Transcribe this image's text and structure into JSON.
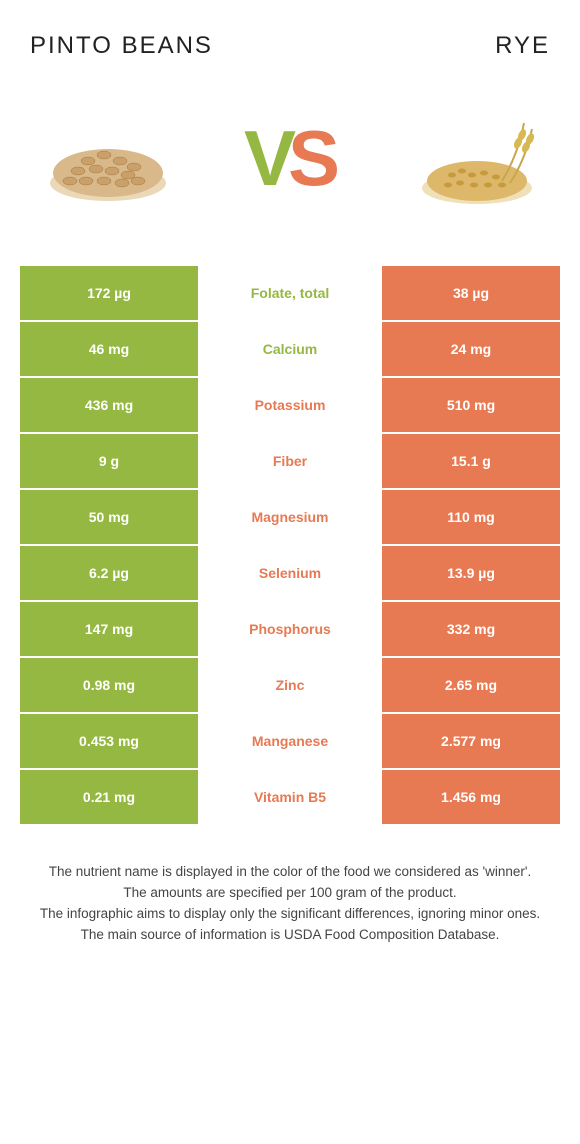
{
  "header": {
    "left_name": "PINTO BEANS",
    "right_name": "RYE"
  },
  "colors": {
    "left": "#95b842",
    "right": "#e77a53",
    "left_strong": "#95b842",
    "right_strong": "#e77a53",
    "white": "#ffffff",
    "text_dark": "#333333"
  },
  "vs": {
    "v_color": "#95b842",
    "s_color": "#e77a53"
  },
  "rows": [
    {
      "left": "172 µg",
      "label": "Folate, total",
      "right": "38 µg",
      "winner": "left"
    },
    {
      "left": "46 mg",
      "label": "Calcium",
      "right": "24 mg",
      "winner": "left"
    },
    {
      "left": "436 mg",
      "label": "Potassium",
      "right": "510 mg",
      "winner": "right"
    },
    {
      "left": "9 g",
      "label": "Fiber",
      "right": "15.1 g",
      "winner": "right"
    },
    {
      "left": "50 mg",
      "label": "Magnesium",
      "right": "110 mg",
      "winner": "right"
    },
    {
      "left": "6.2 µg",
      "label": "Selenium",
      "right": "13.9 µg",
      "winner": "right"
    },
    {
      "left": "147 mg",
      "label": "Phosphorus",
      "right": "332 mg",
      "winner": "right"
    },
    {
      "left": "0.98 mg",
      "label": "Zinc",
      "right": "2.65 mg",
      "winner": "right"
    },
    {
      "left": "0.453 mg",
      "label": "Manganese",
      "right": "2.577 mg",
      "winner": "right"
    },
    {
      "left": "0.21 mg",
      "label": "Vitamin B5",
      "right": "1.456 mg",
      "winner": "right"
    }
  ],
  "notes": [
    "The nutrient name is displayed in the color of the food we considered as 'winner'.",
    "The amounts are specified per 100 gram of the product.",
    "The infographic aims to display only the significant differences, ignoring minor ones.",
    "The main source of information is USDA Food Composition Database."
  ]
}
